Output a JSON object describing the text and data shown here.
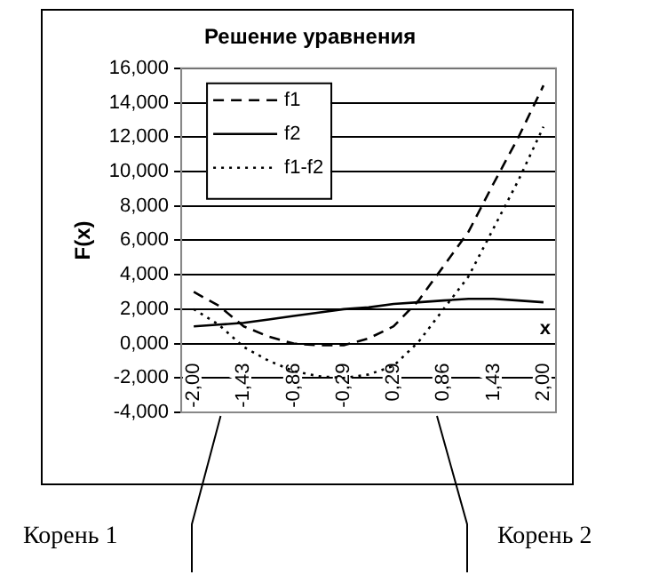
{
  "chart_data": {
    "type": "line",
    "title": "Решение уравнения",
    "xlabel": "x",
    "ylabel": "F(x)",
    "categories": [
      "-2,00",
      null,
      "-1,43",
      null,
      "-0,86",
      null,
      "-0,29",
      null,
      "0,29",
      null,
      "0,86",
      null,
      "1,43",
      null,
      "2,00"
    ],
    "series": [
      {
        "name": "f1",
        "color": "#000000",
        "line_style": "dashed",
        "values": [
          3.0,
          2.2,
          1.0,
          0.4,
          0.0,
          -0.1,
          -0.1,
          0.3,
          1.0,
          2.5,
          4.5,
          6.5,
          9.3,
          12.0,
          15.0
        ]
      },
      {
        "name": "f2",
        "color": "#000000",
        "line_style": "solid",
        "values": [
          1.0,
          1.1,
          1.2,
          1.4,
          1.6,
          1.8,
          2.0,
          2.1,
          2.3,
          2.4,
          2.5,
          2.6,
          2.6,
          2.5,
          2.4
        ]
      },
      {
        "name": "f1-f2",
        "color": "#000000",
        "line_style": "dotted",
        "values": [
          2.0,
          1.1,
          -0.2,
          -1.0,
          -1.6,
          -1.9,
          -2.0,
          -1.8,
          -1.3,
          0.1,
          2.0,
          3.9,
          6.7,
          9.5,
          12.6
        ]
      }
    ],
    "ylim": [
      -4,
      16
    ],
    "yticks": [
      {
        "value": -4,
        "label": "-4,000"
      },
      {
        "value": -2,
        "label": "-2,000"
      },
      {
        "value": 0,
        "label": "0,000"
      },
      {
        "value": 2,
        "label": "2,000"
      },
      {
        "value": 4,
        "label": "4,000"
      },
      {
        "value": 6,
        "label": "6,000"
      },
      {
        "value": 8,
        "label": "8,000"
      },
      {
        "value": 10,
        "label": "10,000"
      },
      {
        "value": 12,
        "label": "12,000"
      },
      {
        "value": 14,
        "label": "14,000"
      },
      {
        "value": 16,
        "label": "16,000"
      }
    ],
    "grid": "y",
    "legend": "top left",
    "marker": "none",
    "annotations": [
      "Корень 1",
      "Корень 2"
    ]
  }
}
